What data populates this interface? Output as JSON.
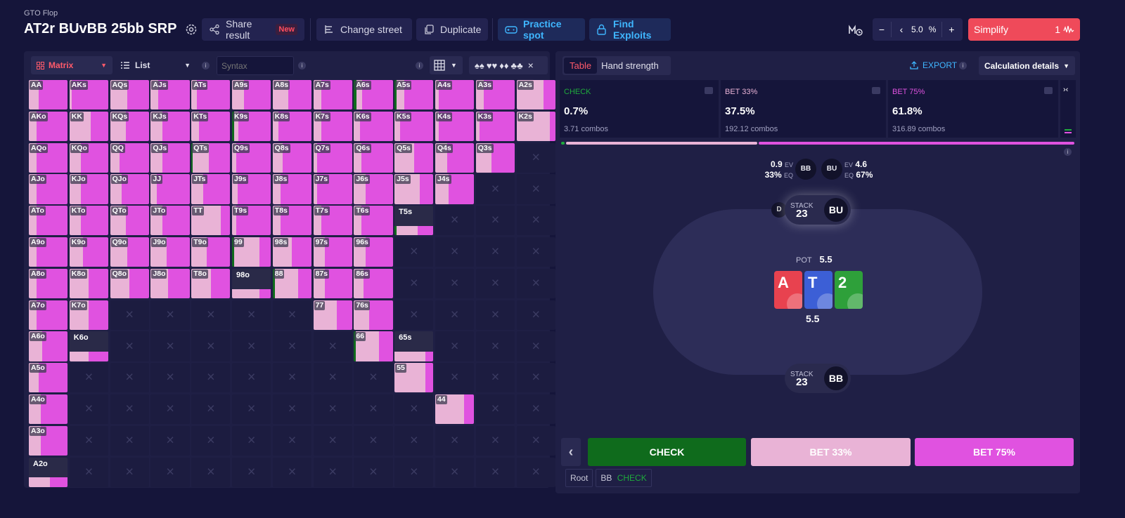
{
  "header": {
    "subtitle": "GTO Flop",
    "title": "AT2r BUvBB 25bb SRP",
    "share_label": "Share result",
    "new_badge": "New",
    "change_street_label": "Change street",
    "duplicate_label": "Duplicate",
    "practice_label": "Practice spot",
    "exploits_label": "Find Exploits",
    "minus": "−",
    "back": "‹",
    "step_value": "5.0",
    "step_unit": "%",
    "plus": "+",
    "simplify_label": "Simplify",
    "simplify_level": "1"
  },
  "left": {
    "view_select": "Matrix",
    "list_select": "List",
    "syntax_placeholder": "Syntax",
    "info": "i",
    "close": "×"
  },
  "matrix": {
    "colors": {
      "check": "#0f6b1c",
      "bet33": "#e9b3d6",
      "bet75": "#e052e0",
      "empty": "#1c1c40"
    },
    "rows": [
      [
        [
          "AA",
          "p",
          [
            0,
            0.25,
            0.75
          ]
        ],
        [
          "AKs",
          "p",
          [
            0,
            0.05,
            0.95
          ]
        ],
        [
          "AQs",
          "p",
          [
            0,
            0.45,
            0.55
          ]
        ],
        [
          "AJs",
          "p",
          [
            0,
            0.2,
            0.8
          ]
        ],
        [
          "ATs",
          "p",
          [
            0,
            0.15,
            0.85
          ]
        ],
        [
          "A9s",
          "p",
          [
            0,
            0.3,
            0.7
          ]
        ],
        [
          "A8s",
          "p",
          [
            0,
            0.4,
            0.6
          ]
        ],
        [
          "A7s",
          "p",
          [
            0,
            0.2,
            0.8
          ]
        ],
        [
          "A6s",
          "p",
          [
            0.06,
            0.15,
            0.79
          ]
        ],
        [
          "A5s",
          "p",
          [
            0.05,
            0.2,
            0.75
          ]
        ],
        [
          "A4s",
          "p",
          [
            0,
            0.1,
            0.9
          ]
        ],
        [
          "A3s",
          "p",
          [
            0,
            0.2,
            0.8
          ]
        ],
        [
          "A2s",
          "p",
          [
            0,
            0.7,
            0.3
          ]
        ]
      ],
      [
        [
          "AKo",
          "p",
          [
            0,
            0.2,
            0.8
          ]
        ],
        [
          "KK",
          "p",
          [
            0,
            0.55,
            0.45
          ]
        ],
        [
          "KQs",
          "p",
          [
            0,
            0.4,
            0.6
          ]
        ],
        [
          "KJs",
          "p",
          [
            0,
            0.3,
            0.7
          ]
        ],
        [
          "KTs",
          "p",
          [
            0,
            0.2,
            0.8
          ]
        ],
        [
          "K9s",
          "p",
          [
            0.06,
            0.1,
            0.84
          ]
        ],
        [
          "K8s",
          "p",
          [
            0,
            0.15,
            0.85
          ]
        ],
        [
          "K7s",
          "p",
          [
            0,
            0.2,
            0.8
          ]
        ],
        [
          "K6s",
          "p",
          [
            0,
            0.15,
            0.85
          ]
        ],
        [
          "K5s",
          "p",
          [
            0,
            0.15,
            0.85
          ]
        ],
        [
          "K4s",
          "p",
          [
            0,
            0.1,
            0.9
          ]
        ],
        [
          "K3s",
          "p",
          [
            0,
            0.1,
            0.9
          ]
        ],
        [
          "K2s",
          "p",
          [
            0,
            0.85,
            0.15
          ]
        ]
      ],
      [
        [
          "AQo",
          "p",
          [
            0,
            0.2,
            0.8
          ]
        ],
        [
          "KQo",
          "p",
          [
            0,
            0.3,
            0.7
          ]
        ],
        [
          "QQ",
          "p",
          [
            0,
            0.25,
            0.75
          ]
        ],
        [
          "QJs",
          "p",
          [
            0,
            0.3,
            0.7
          ]
        ],
        [
          "QTs",
          "p",
          [
            0.04,
            0.4,
            0.56
          ]
        ],
        [
          "Q9s",
          "p",
          [
            0,
            0.1,
            0.9
          ]
        ],
        [
          "Q8s",
          "p",
          [
            0,
            0.25,
            0.75
          ]
        ],
        [
          "Q7s",
          "p",
          [
            0,
            0.1,
            0.9
          ]
        ],
        [
          "Q6s",
          "p",
          [
            0,
            0.2,
            0.8
          ]
        ],
        [
          "Q5s",
          "p",
          [
            0,
            0.5,
            0.5
          ]
        ],
        [
          "Q4s",
          "p",
          [
            0,
            0.3,
            0.7
          ]
        ],
        [
          "Q3s",
          "p",
          [
            0,
            0.4,
            0.6
          ]
        ],
        [
          "",
          "e",
          null
        ]
      ],
      [
        [
          "AJo",
          "p",
          [
            0,
            0.2,
            0.8
          ]
        ],
        [
          "KJo",
          "p",
          [
            0,
            0.3,
            0.7
          ]
        ],
        [
          "QJo",
          "p",
          [
            0,
            0.3,
            0.7
          ]
        ],
        [
          "JJ",
          "p",
          [
            0,
            0.15,
            0.85
          ]
        ],
        [
          "JTs",
          "p",
          [
            0,
            0.3,
            0.7
          ]
        ],
        [
          "J9s",
          "p",
          [
            0,
            0.15,
            0.85
          ]
        ],
        [
          "J8s",
          "p",
          [
            0,
            0.2,
            0.8
          ]
        ],
        [
          "J7s",
          "p",
          [
            0,
            0.1,
            0.9
          ]
        ],
        [
          "J6s",
          "p",
          [
            0,
            0.3,
            0.7
          ]
        ],
        [
          "J5s",
          "p",
          [
            0,
            0.65,
            0.35
          ]
        ],
        [
          "J4s",
          "p",
          [
            0,
            0.35,
            0.65
          ]
        ],
        [
          "",
          "e",
          null
        ],
        [
          "",
          "e",
          null
        ]
      ],
      [
        [
          "ATo",
          "p",
          [
            0,
            0.2,
            0.8
          ]
        ],
        [
          "KTo",
          "p",
          [
            0,
            0.3,
            0.7
          ]
        ],
        [
          "QTo",
          "p",
          [
            0,
            0.4,
            0.6
          ]
        ],
        [
          "JTo",
          "p",
          [
            0,
            0.3,
            0.7
          ]
        ],
        [
          "TT",
          "p",
          [
            0,
            0.75,
            0.25
          ]
        ],
        [
          "T9s",
          "p",
          [
            0,
            0.1,
            0.9
          ]
        ],
        [
          "T8s",
          "p",
          [
            0,
            0.2,
            0.8
          ]
        ],
        [
          "T7s",
          "p",
          [
            0,
            0.2,
            0.8
          ]
        ],
        [
          "T6s",
          "p",
          [
            0,
            0.2,
            0.8
          ]
        ],
        [
          "T5s",
          "s",
          [
            0.05,
            0.55,
            0.4
          ]
        ],
        [
          "",
          "e",
          null
        ],
        [
          "",
          "e",
          null
        ],
        [
          "",
          "e",
          null
        ]
      ],
      [
        [
          "A9o",
          "p",
          [
            0,
            0.2,
            0.8
          ]
        ],
        [
          "K9o",
          "p",
          [
            0,
            0.35,
            0.65
          ]
        ],
        [
          "Q9o",
          "p",
          [
            0,
            0.45,
            0.55
          ]
        ],
        [
          "J9o",
          "p",
          [
            0,
            0.4,
            0.6
          ]
        ],
        [
          "T9o",
          "p",
          [
            0,
            0.4,
            0.6
          ]
        ],
        [
          "99",
          "p",
          [
            0.05,
            0.65,
            0.3
          ]
        ],
        [
          "98s",
          "p",
          [
            0,
            0.5,
            0.5
          ]
        ],
        [
          "97s",
          "p",
          [
            0,
            0.3,
            0.7
          ]
        ],
        [
          "96s",
          "p",
          [
            0,
            0.3,
            0.7
          ]
        ],
        [
          "",
          "e",
          null
        ],
        [
          "",
          "e",
          null
        ],
        [
          "",
          "e",
          null
        ],
        [
          "",
          "e",
          null
        ]
      ],
      [
        [
          "A8o",
          "p",
          [
            0,
            0.2,
            0.8
          ]
        ],
        [
          "K8o",
          "p",
          [
            0,
            0.5,
            0.5
          ]
        ],
        [
          "Q8o",
          "p",
          [
            0,
            0.5,
            0.5
          ]
        ],
        [
          "J8o",
          "p",
          [
            0,
            0.45,
            0.55
          ]
        ],
        [
          "T8o",
          "p",
          [
            0,
            0.5,
            0.5
          ]
        ],
        [
          "98o",
          "s",
          [
            0,
            0.7,
            0.3
          ]
        ],
        [
          "88",
          "p",
          [
            0.05,
            0.6,
            0.35
          ]
        ],
        [
          "87s",
          "p",
          [
            0,
            0.3,
            0.7
          ]
        ],
        [
          "86s",
          "p",
          [
            0,
            0.25,
            0.75
          ]
        ],
        [
          "",
          "e",
          null
        ],
        [
          "",
          "e",
          null
        ],
        [
          "",
          "e",
          null
        ],
        [
          "",
          "e",
          null
        ]
      ],
      [
        [
          "A7o",
          "p",
          [
            0,
            0.2,
            0.8
          ]
        ],
        [
          "K7o",
          "p",
          [
            0,
            0.5,
            0.5
          ]
        ],
        [
          "",
          "e",
          null
        ],
        [
          "",
          "e",
          null
        ],
        [
          "",
          "e",
          null
        ],
        [
          "",
          "e",
          null
        ],
        [
          "",
          "e",
          null
        ],
        [
          "77",
          "p",
          [
            0,
            0.6,
            0.4
          ]
        ],
        [
          "76s",
          "p",
          [
            0,
            0.4,
            0.6
          ]
        ],
        [
          "",
          "e",
          null
        ],
        [
          "",
          "e",
          null
        ],
        [
          "",
          "e",
          null
        ],
        [
          "",
          "e",
          null
        ]
      ],
      [
        [
          "A6o",
          "p",
          [
            0,
            0.35,
            0.65
          ]
        ],
        [
          "K6o",
          "s",
          [
            0,
            0.5,
            0.5
          ]
        ],
        [
          "",
          "e",
          null
        ],
        [
          "",
          "e",
          null
        ],
        [
          "",
          "e",
          null
        ],
        [
          "",
          "e",
          null
        ],
        [
          "",
          "e",
          null
        ],
        [
          "",
          "e",
          null
        ],
        [
          "66",
          "p",
          [
            0.05,
            0.6,
            0.35
          ]
        ],
        [
          "65s",
          "s",
          [
            0,
            0.8,
            0.2
          ]
        ],
        [
          "",
          "e",
          null
        ],
        [
          "",
          "e",
          null
        ],
        [
          "",
          "e",
          null
        ]
      ],
      [
        [
          "A5o",
          "p",
          [
            0,
            0.25,
            0.75
          ]
        ],
        [
          "",
          "e",
          null
        ],
        [
          "",
          "e",
          null
        ],
        [
          "",
          "e",
          null
        ],
        [
          "",
          "e",
          null
        ],
        [
          "",
          "e",
          null
        ],
        [
          "",
          "e",
          null
        ],
        [
          "",
          "e",
          null
        ],
        [
          "",
          "e",
          null
        ],
        [
          "55",
          "p",
          [
            0,
            0.8,
            0.2
          ]
        ],
        [
          "",
          "e",
          null
        ],
        [
          "",
          "e",
          null
        ],
        [
          "",
          "e",
          null
        ]
      ],
      [
        [
          "A4o",
          "p",
          [
            0,
            0.3,
            0.7
          ]
        ],
        [
          "",
          "e",
          null
        ],
        [
          "",
          "e",
          null
        ],
        [
          "",
          "e",
          null
        ],
        [
          "",
          "e",
          null
        ],
        [
          "",
          "e",
          null
        ],
        [
          "",
          "e",
          null
        ],
        [
          "",
          "e",
          null
        ],
        [
          "",
          "e",
          null
        ],
        [
          "",
          "e",
          null
        ],
        [
          "44",
          "p",
          [
            0,
            0.75,
            0.25
          ]
        ],
        [
          "",
          "e",
          null
        ],
        [
          "",
          "e",
          null
        ]
      ],
      [
        [
          "A3o",
          "p",
          [
            0,
            0.3,
            0.7
          ]
        ],
        [
          "",
          "e",
          null
        ],
        [
          "",
          "e",
          null
        ],
        [
          "",
          "e",
          null
        ],
        [
          "",
          "e",
          null
        ],
        [
          "",
          "e",
          null
        ],
        [
          "",
          "e",
          null
        ],
        [
          "",
          "e",
          null
        ],
        [
          "",
          "e",
          null
        ],
        [
          "",
          "e",
          null
        ],
        [
          "",
          "e",
          null
        ],
        [
          "",
          "e",
          null
        ],
        [
          "",
          "e",
          null
        ]
      ],
      [
        [
          "A2o",
          "s",
          [
            0,
            0.55,
            0.45
          ]
        ],
        [
          "",
          "e",
          null
        ],
        [
          "",
          "e",
          null
        ],
        [
          "",
          "e",
          null
        ],
        [
          "",
          "e",
          null
        ],
        [
          "",
          "e",
          null
        ],
        [
          "",
          "e",
          null
        ],
        [
          "",
          "e",
          null
        ],
        [
          "",
          "e",
          null
        ],
        [
          "",
          "e",
          null
        ],
        [
          "",
          "e",
          null
        ],
        [
          "",
          "e",
          null
        ],
        [
          "",
          "e",
          null
        ]
      ]
    ]
  },
  "right": {
    "tab_table": "Table",
    "tab_hand_strength": "Hand strength",
    "export_label": "EXPORT",
    "info": "i",
    "calc_label": "Calculation details",
    "collapse": "›‹",
    "actions": [
      {
        "name": "CHECK",
        "pct": "0.7%",
        "combos": "3.71 combos",
        "color": "#1faa3c"
      },
      {
        "name": "BET 33%",
        "pct": "37.5%",
        "combos": "192.12 combos",
        "color": "#e9b3d6"
      },
      {
        "name": "BET 75%",
        "pct": "61.8%",
        "combos": "316.89 combos",
        "color": "#e052e0"
      }
    ],
    "freq_bar": [
      0.007,
      0.375,
      0.618
    ],
    "ev": {
      "bb_ev": "0.9",
      "bb_eq": "33%",
      "ev_label": "EV",
      "eq_label": "EQ",
      "bb": "BB",
      "bu": "BU",
      "bu_ev": "4.6",
      "bu_eq": "67%"
    },
    "table": {
      "dealer": "D",
      "stack_label": "STACK",
      "bu_stack": "23",
      "bu_pos": "BU",
      "bb_stack": "23",
      "bb_pos": "BB",
      "pot_label": "POT",
      "pot_value": "5.5",
      "pot_below": "5.5",
      "cards": [
        {
          "rank": "A",
          "color": "#e8424f"
        },
        {
          "rank": "T",
          "color": "#3c5fd6"
        },
        {
          "rank": "2",
          "color": "#2ea03a"
        }
      ]
    },
    "buttons": {
      "back": "‹",
      "check": "CHECK",
      "bet33": "BET 33%",
      "bet75": "BET 75%"
    },
    "breadcrumb": {
      "root": "Root",
      "bb": "BB",
      "check": "CHECK"
    }
  }
}
